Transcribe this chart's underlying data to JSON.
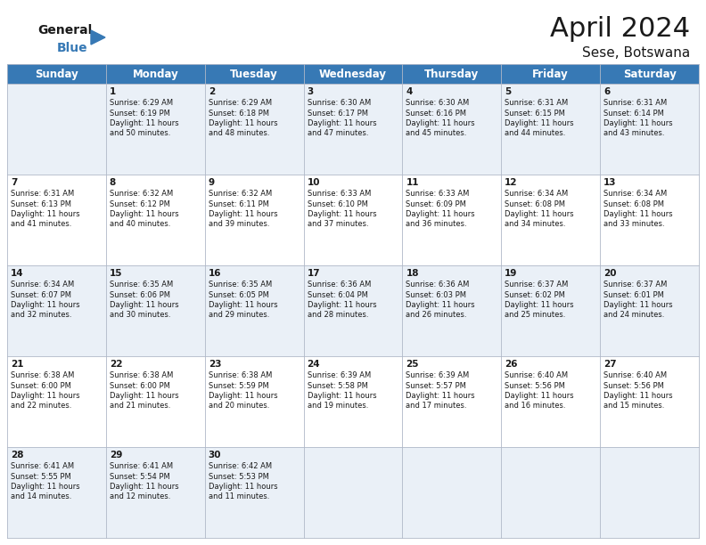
{
  "title": "April 2024",
  "subtitle": "Sese, Botswana",
  "header_color": "#3779b5",
  "header_text_color": "#ffffff",
  "grid_line_color": "#b0b8c8",
  "bg_color": "#ffffff",
  "alt_row_color": "#eaf0f7",
  "day_names": [
    "Sunday",
    "Monday",
    "Tuesday",
    "Wednesday",
    "Thursday",
    "Friday",
    "Saturday"
  ],
  "title_fontsize": 22,
  "subtitle_fontsize": 11,
  "header_fontsize": 8.5,
  "cell_fontsize": 6.0,
  "day_num_fontsize": 7.5,
  "weeks": [
    [
      {
        "day": "",
        "sunrise": "",
        "sunset": "",
        "daylight": ""
      },
      {
        "day": "1",
        "sunrise": "6:29 AM",
        "sunset": "6:19 PM",
        "daylight": "11 hours and 50 minutes."
      },
      {
        "day": "2",
        "sunrise": "6:29 AM",
        "sunset": "6:18 PM",
        "daylight": "11 hours and 48 minutes."
      },
      {
        "day": "3",
        "sunrise": "6:30 AM",
        "sunset": "6:17 PM",
        "daylight": "11 hours and 47 minutes."
      },
      {
        "day": "4",
        "sunrise": "6:30 AM",
        "sunset": "6:16 PM",
        "daylight": "11 hours and 45 minutes."
      },
      {
        "day": "5",
        "sunrise": "6:31 AM",
        "sunset": "6:15 PM",
        "daylight": "11 hours and 44 minutes."
      },
      {
        "day": "6",
        "sunrise": "6:31 AM",
        "sunset": "6:14 PM",
        "daylight": "11 hours and 43 minutes."
      }
    ],
    [
      {
        "day": "7",
        "sunrise": "6:31 AM",
        "sunset": "6:13 PM",
        "daylight": "11 hours and 41 minutes."
      },
      {
        "day": "8",
        "sunrise": "6:32 AM",
        "sunset": "6:12 PM",
        "daylight": "11 hours and 40 minutes."
      },
      {
        "day": "9",
        "sunrise": "6:32 AM",
        "sunset": "6:11 PM",
        "daylight": "11 hours and 39 minutes."
      },
      {
        "day": "10",
        "sunrise": "6:33 AM",
        "sunset": "6:10 PM",
        "daylight": "11 hours and 37 minutes."
      },
      {
        "day": "11",
        "sunrise": "6:33 AM",
        "sunset": "6:09 PM",
        "daylight": "11 hours and 36 minutes."
      },
      {
        "day": "12",
        "sunrise": "6:34 AM",
        "sunset": "6:08 PM",
        "daylight": "11 hours and 34 minutes."
      },
      {
        "day": "13",
        "sunrise": "6:34 AM",
        "sunset": "6:08 PM",
        "daylight": "11 hours and 33 minutes."
      }
    ],
    [
      {
        "day": "14",
        "sunrise": "6:34 AM",
        "sunset": "6:07 PM",
        "daylight": "11 hours and 32 minutes."
      },
      {
        "day": "15",
        "sunrise": "6:35 AM",
        "sunset": "6:06 PM",
        "daylight": "11 hours and 30 minutes."
      },
      {
        "day": "16",
        "sunrise": "6:35 AM",
        "sunset": "6:05 PM",
        "daylight": "11 hours and 29 minutes."
      },
      {
        "day": "17",
        "sunrise": "6:36 AM",
        "sunset": "6:04 PM",
        "daylight": "11 hours and 28 minutes."
      },
      {
        "day": "18",
        "sunrise": "6:36 AM",
        "sunset": "6:03 PM",
        "daylight": "11 hours and 26 minutes."
      },
      {
        "day": "19",
        "sunrise": "6:37 AM",
        "sunset": "6:02 PM",
        "daylight": "11 hours and 25 minutes."
      },
      {
        "day": "20",
        "sunrise": "6:37 AM",
        "sunset": "6:01 PM",
        "daylight": "11 hours and 24 minutes."
      }
    ],
    [
      {
        "day": "21",
        "sunrise": "6:38 AM",
        "sunset": "6:00 PM",
        "daylight": "11 hours and 22 minutes."
      },
      {
        "day": "22",
        "sunrise": "6:38 AM",
        "sunset": "6:00 PM",
        "daylight": "11 hours and 21 minutes."
      },
      {
        "day": "23",
        "sunrise": "6:38 AM",
        "sunset": "5:59 PM",
        "daylight": "11 hours and 20 minutes."
      },
      {
        "day": "24",
        "sunrise": "6:39 AM",
        "sunset": "5:58 PM",
        "daylight": "11 hours and 19 minutes."
      },
      {
        "day": "25",
        "sunrise": "6:39 AM",
        "sunset": "5:57 PM",
        "daylight": "11 hours and 17 minutes."
      },
      {
        "day": "26",
        "sunrise": "6:40 AM",
        "sunset": "5:56 PM",
        "daylight": "11 hours and 16 minutes."
      },
      {
        "day": "27",
        "sunrise": "6:40 AM",
        "sunset": "5:56 PM",
        "daylight": "11 hours and 15 minutes."
      }
    ],
    [
      {
        "day": "28",
        "sunrise": "6:41 AM",
        "sunset": "5:55 PM",
        "daylight": "11 hours and 14 minutes."
      },
      {
        "day": "29",
        "sunrise": "6:41 AM",
        "sunset": "5:54 PM",
        "daylight": "11 hours and 12 minutes."
      },
      {
        "day": "30",
        "sunrise": "6:42 AM",
        "sunset": "5:53 PM",
        "daylight": "11 hours and 11 minutes."
      },
      {
        "day": "",
        "sunrise": "",
        "sunset": "",
        "daylight": ""
      },
      {
        "day": "",
        "sunrise": "",
        "sunset": "",
        "daylight": ""
      },
      {
        "day": "",
        "sunrise": "",
        "sunset": "",
        "daylight": ""
      },
      {
        "day": "",
        "sunrise": "",
        "sunset": "",
        "daylight": ""
      }
    ]
  ]
}
